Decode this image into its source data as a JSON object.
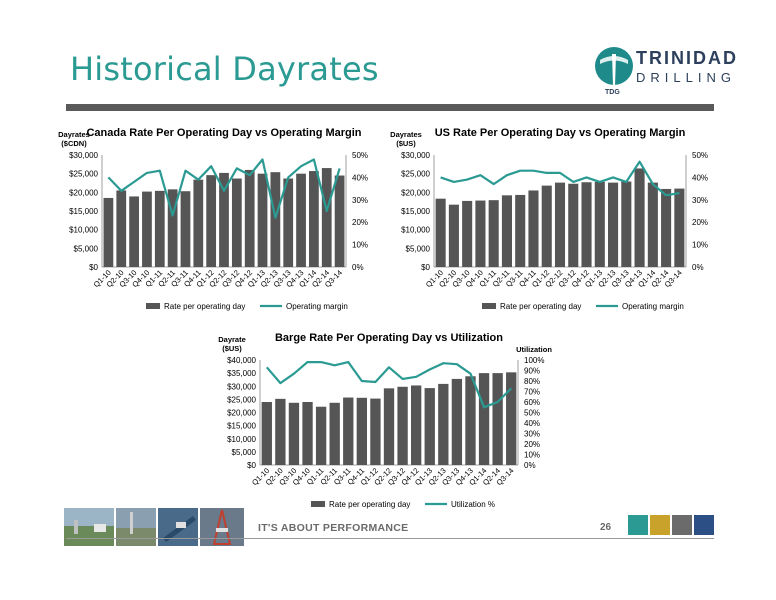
{
  "title": "Historical Dayrates",
  "logo": {
    "word1": "TRINIDAD",
    "word2": "DRILLING",
    "sub": "TDG"
  },
  "footer": {
    "tagline": "IT'S ABOUT PERFORMANCE",
    "page": "26"
  },
  "colors": {
    "bar": "#555555",
    "line": "#2a9a92",
    "title": "#2a9a92",
    "squares": [
      "#2a9a92",
      "#c8a22a",
      "#6b6b6b",
      "#2c4f86"
    ]
  },
  "chart_data": [
    {
      "type": "bar",
      "title": "Canada Rate Per Operating Day vs Operating  Margin",
      "ylabel": "Dayrates\n($CDN)",
      "y2label": "",
      "categories": [
        "Q1-10",
        "Q2-10",
        "Q3-10",
        "Q4-10",
        "Q1-11",
        "Q2-11",
        "Q3-11",
        "Q4-11",
        "Q1-12",
        "Q2-12",
        "Q3-12",
        "Q4-12",
        "Q1-13",
        "Q2-13",
        "Q3-13",
        "Q4-13",
        "Q1-14",
        "Q2-14",
        "Q3-14"
      ],
      "ylim": [
        0,
        30000
      ],
      "yticks": [
        "$0",
        "$5,000",
        "$10,000",
        "$15,000",
        "$20,000",
        "$25,000",
        "$30,000"
      ],
      "y2lim": [
        0,
        50
      ],
      "y2ticks": [
        "0%",
        "10%",
        "20%",
        "30%",
        "40%",
        "50%"
      ],
      "series": [
        {
          "name": "Rate per operating day",
          "kind": "bar",
          "values": [
            18500,
            20500,
            18900,
            20200,
            20400,
            20800,
            20300,
            23400,
            24600,
            25200,
            23700,
            26000,
            25000,
            25400,
            23700,
            25000,
            25700,
            26500,
            24500
          ]
        },
        {
          "name": "Operating margin",
          "kind": "line",
          "axis": "y2",
          "values": [
            40,
            34,
            38,
            42,
            43,
            23,
            43,
            39,
            45,
            34,
            44,
            41,
            48,
            22,
            40,
            45,
            48,
            25,
            44
          ]
        }
      ],
      "legend": "bottom"
    },
    {
      "type": "bar",
      "title": "US Rate Per Operating Day vs Operating Margin",
      "ylabel": "Dayrates\n($US)",
      "y2label": "",
      "categories": [
        "Q1-10",
        "Q2-10",
        "Q3-10",
        "Q4-10",
        "Q1-11",
        "Q2-11",
        "Q3-11",
        "Q4-11",
        "Q1-12",
        "Q2-12",
        "Q3-12",
        "Q4-12",
        "Q1-13",
        "Q2-13",
        "Q3-13",
        "Q4-13",
        "Q1-14",
        "Q2-14",
        "Q3-14"
      ],
      "ylim": [
        0,
        30000
      ],
      "yticks": [
        "$0",
        "$5,000",
        "$10,000",
        "$15,000",
        "$20,000",
        "$25,000",
        "$30,000"
      ],
      "y2lim": [
        0,
        50
      ],
      "y2ticks": [
        "0%",
        "10%",
        "20%",
        "30%",
        "40%",
        "50%"
      ],
      "series": [
        {
          "name": "Rate per operating day",
          "kind": "bar",
          "values": [
            18300,
            16700,
            17700,
            17800,
            17900,
            19200,
            19300,
            20500,
            21800,
            22600,
            22300,
            22700,
            22800,
            22600,
            22900,
            26400,
            22600,
            20900,
            21000
          ]
        },
        {
          "name": "Operating margin",
          "kind": "line",
          "axis": "y2",
          "values": [
            40,
            38,
            39,
            41,
            37,
            41,
            43,
            43,
            42,
            42,
            38,
            40,
            38,
            40,
            38,
            47,
            37,
            32,
            33
          ]
        }
      ],
      "legend": "bottom"
    },
    {
      "type": "bar",
      "title": "Barge Rate Per Operating Day vs Utilization",
      "ylabel": "Dayrate\n($US)",
      "y2label": "Utilization",
      "categories": [
        "Q1-10",
        "Q2-10",
        "Q3-10",
        "Q4-10",
        "Q1-11",
        "Q2-11",
        "Q3-11",
        "Q4-11",
        "Q1-12",
        "Q2-12",
        "Q3-12",
        "Q4-12",
        "Q1-13",
        "Q2-13",
        "Q3-13",
        "Q4-13",
        "Q1-14",
        "Q2-14",
        "Q3-14"
      ],
      "ylim": [
        0,
        40000
      ],
      "yticks": [
        "$0",
        "$5,000",
        "$10,000",
        "$15,000",
        "$20,000",
        "$25,000",
        "$30,000",
        "$35,000",
        "$40,000"
      ],
      "y2lim": [
        0,
        100
      ],
      "y2ticks": [
        "0%",
        "10%",
        "20%",
        "30%",
        "40%",
        "50%",
        "60%",
        "70%",
        "80%",
        "90%",
        "100%"
      ],
      "series": [
        {
          "name": "Rate per operating day",
          "kind": "bar",
          "values": [
            24000,
            25200,
            23700,
            24000,
            22200,
            23700,
            25700,
            25600,
            25300,
            29200,
            29800,
            30300,
            29300,
            30900,
            32800,
            33800,
            35000,
            35000,
            35300
          ]
        },
        {
          "name": "Utilization %",
          "kind": "line",
          "axis": "y2",
          "values": [
            93,
            78,
            87,
            98,
            98,
            95,
            98,
            80,
            79,
            93,
            82,
            84,
            91,
            97,
            96,
            87,
            55,
            60,
            73
          ]
        }
      ],
      "legend": "bottom"
    }
  ]
}
